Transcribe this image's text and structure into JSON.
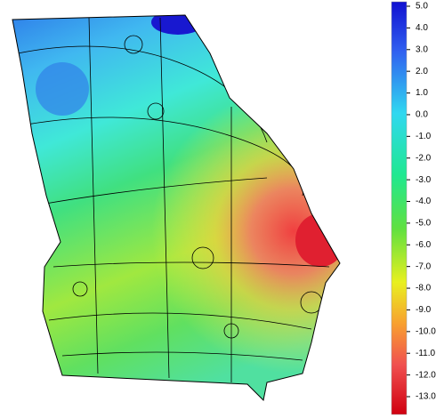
{
  "colorbar": {
    "ticks": [
      {
        "value": 5,
        "label": "5.0"
      },
      {
        "value": 4,
        "label": "4.0"
      },
      {
        "value": 3,
        "label": "3.0"
      },
      {
        "value": 2,
        "label": "2.0"
      },
      {
        "value": 1,
        "label": "1.0"
      },
      {
        "value": 0,
        "label": "0.0"
      },
      {
        "value": -1,
        "label": "-1.0"
      },
      {
        "value": -2,
        "label": "-2.0"
      },
      {
        "value": -3,
        "label": "-3.0"
      },
      {
        "value": -4,
        "label": "-4.0"
      },
      {
        "value": -5,
        "label": "-5.0"
      },
      {
        "value": -6,
        "label": "-6.0"
      },
      {
        "value": -7,
        "label": "-7.0"
      },
      {
        "value": -8,
        "label": "-8.0"
      },
      {
        "value": -9,
        "label": "-9.0"
      },
      {
        "value": -10,
        "label": "-10.0"
      },
      {
        "value": -11,
        "label": "-11.0"
      },
      {
        "value": -12,
        "label": "-12.0"
      },
      {
        "value": -13,
        "label": "-13.0"
      }
    ]
  }
}
